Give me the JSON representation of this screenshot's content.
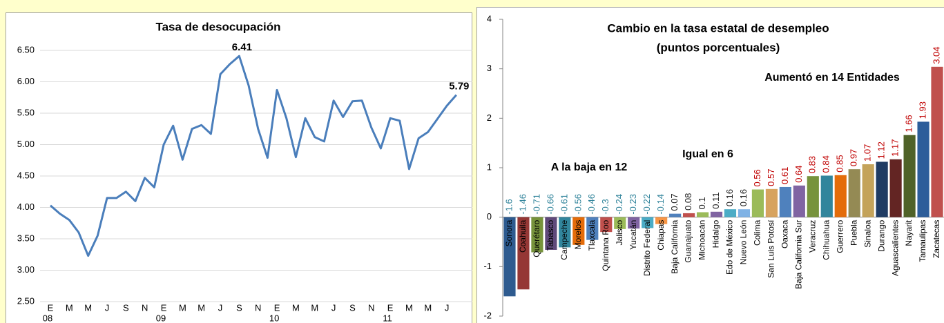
{
  "chart_data": [
    {
      "type": "line",
      "title": "Tasa de desocupación",
      "categories": [
        "E",
        null,
        "M",
        null,
        "M",
        null,
        "J",
        null,
        "S",
        null,
        "N",
        null,
        "E",
        null,
        "M",
        null,
        "M",
        null,
        "J",
        null,
        "S",
        null,
        "N",
        null,
        "E",
        null,
        "M",
        null,
        "M",
        null,
        "J",
        null,
        "S",
        null,
        "N",
        null,
        "E",
        null,
        "M",
        null,
        "M",
        null,
        "J",
        null
      ],
      "category_groups": [
        "08",
        null,
        null,
        null,
        null,
        null,
        null,
        null,
        null,
        null,
        null,
        null,
        "09",
        null,
        null,
        null,
        null,
        null,
        null,
        null,
        null,
        null,
        null,
        null,
        "10",
        null,
        null,
        null,
        null,
        null,
        null,
        null,
        null,
        null,
        null,
        null,
        "11",
        null,
        null,
        null,
        null,
        null,
        null,
        null
      ],
      "values": [
        4.03,
        3.9,
        3.8,
        3.6,
        3.23,
        3.55,
        4.15,
        4.15,
        4.25,
        4.1,
        4.47,
        4.32,
        5.0,
        5.3,
        4.76,
        5.25,
        5.31,
        5.17,
        6.12,
        6.28,
        6.41,
        5.94,
        5.25,
        4.79,
        5.87,
        5.42,
        4.8,
        5.42,
        5.12,
        5.05,
        5.7,
        5.44,
        5.69,
        5.7,
        5.27,
        4.94,
        5.42,
        5.38,
        4.61,
        5.1,
        5.2,
        5.41,
        5.62,
        5.79
      ],
      "label_indices": [
        20,
        43
      ],
      "color": "#4a7ebb",
      "ylim": [
        2.5,
        6.5
      ],
      "yticks": [
        {
          "value": 2.5,
          "label": "2.50"
        },
        {
          "value": 3,
          "label": "3.00"
        },
        {
          "value": 3.5,
          "label": "3.50"
        },
        {
          "value": 4,
          "label": "4.00"
        },
        {
          "value": 4.5,
          "label": "4.50"
        },
        {
          "value": 5,
          "label": "5.00"
        },
        {
          "value": 5.5,
          "label": "5.50"
        },
        {
          "value": 6,
          "label": "6.00"
        },
        {
          "value": 6.5,
          "label": "6.50"
        }
      ],
      "grid": true
    },
    {
      "type": "bar",
      "title": [
        "Cambio en la tasa estatal de desempleo",
        "(puntos porcentuales)"
      ],
      "annotations": [
        "Aumentó en 14 Entidades",
        "A la baja en 12",
        "Igual en 6"
      ],
      "categories": [
        "Sonora",
        "Coahuila",
        "Querétaro",
        "Tabasco",
        "Campeche",
        "Morelos",
        "Tlaxcala",
        "Quintana Roo",
        "Jalisco",
        "Yucatán",
        "Distrito Federal",
        "Chiapas",
        "Baja California",
        "Guanajuato",
        "Michoacán",
        "Hidalgo",
        "Edo de México",
        "Nuevo León",
        "Colima",
        "San Luis Potosí",
        "Oaxaca",
        "Baja California Sur",
        "Veracruz",
        "Chihuahua",
        "Guerrero",
        "Puebla",
        "Sinaloa",
        "Durango",
        "Aguascalientes",
        "Nayarit",
        "Tamaulipas",
        "Zacatecas"
      ],
      "values": [
        -1.6,
        -1.46,
        -0.71,
        -0.66,
        -0.61,
        -0.56,
        -0.46,
        -0.3,
        -0.24,
        -0.23,
        -0.22,
        -0.14,
        0.07,
        0.08,
        0.1,
        0.11,
        0.16,
        0.16,
        0.56,
        0.57,
        0.61,
        0.64,
        0.83,
        0.84,
        0.85,
        0.97,
        1.07,
        1.12,
        1.17,
        1.66,
        1.93,
        3.04
      ],
      "colors": [
        "#2e5b8f",
        "#953735",
        "#77933c",
        "#5f497a",
        "#31859c",
        "#e46c0a",
        "#4f81bd",
        "#c0504d",
        "#9bbb59",
        "#8064a2",
        "#4bacc6",
        "#f79646",
        "#4f81bd",
        "#c0504d",
        "#9bbb59",
        "#8064a2",
        "#4bacc6",
        "#7fb2e5",
        "#9bbb59",
        "#d7a35f",
        "#4f81bd",
        "#8064a2",
        "#77933c",
        "#31859c",
        "#e46c0a",
        "#948a54",
        "#c4a35a",
        "#1f3b63",
        "#632523",
        "#4f6228",
        "#2c5d9a",
        "#c0504d"
      ],
      "label_colors": [
        "#31849b",
        "#31849b",
        "#31849b",
        "#31849b",
        "#31849b",
        "#31849b",
        "#31849b",
        "#31849b",
        "#31849b",
        "#31849b",
        "#31849b",
        "#31849b",
        "#222222",
        "#222222",
        "#222222",
        "#222222",
        "#222222",
        "#222222",
        "#c00000",
        "#c00000",
        "#c00000",
        "#c00000",
        "#c00000",
        "#c00000",
        "#c00000",
        "#c00000",
        "#c00000",
        "#c00000",
        "#c00000",
        "#c00000",
        "#c00000",
        "#c00000"
      ],
      "ylim": [
        -2,
        4
      ],
      "yticks": [
        -2,
        -1,
        0,
        1,
        2,
        3,
        4
      ],
      "grid": false
    }
  ]
}
